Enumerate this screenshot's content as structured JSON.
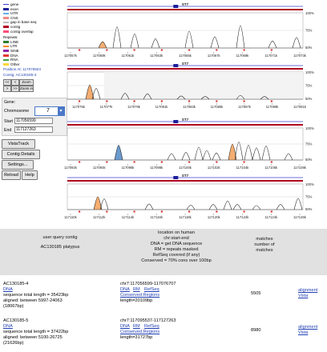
{
  "legend": {
    "features": [
      {
        "label": "gene",
        "color": "#3b3bd6"
      },
      {
        "label": "exon",
        "color": "#1f1f9a"
      },
      {
        "label": "UTR",
        "color": "#66b2e8"
      },
      {
        "label": "CNS",
        "color": "#ef8a86"
      },
      {
        "label": "gap in base seq",
        "color": "#bdbdbd"
      },
      {
        "label": "contig",
        "color": "#b00020"
      },
      {
        "label": "contig overlap",
        "color": "#ff4d7a"
      }
    ],
    "repeats_title": "Repeats:",
    "repeats": [
      {
        "label": "LINE",
        "color": "#2e7d32"
      },
      {
        "label": "LTR",
        "color": "#fb8c00"
      },
      {
        "label": "SINE",
        "color": "#8e24aa"
      },
      {
        "label": "DNA",
        "color": "#e53935"
      },
      {
        "label": "RNA",
        "color": "#43a047"
      },
      {
        "label": "Other",
        "color": "#fdd835"
      }
    ],
    "position_text": "Position At: 117075923",
    "contig_text": "Contig: AC130185-4"
  },
  "nav": {
    "buttons": [
      "<<",
      "<",
      "Zoom out",
      ">",
      ">>",
      "Zoom in"
    ]
  },
  "form": {
    "gene_label": "Gene:",
    "chromosome_label": "Chromosome",
    "chromosome_value": "7",
    "start_label": "Start",
    "start_value": "117056599",
    "end_label": "End",
    "end_value": "117127263"
  },
  "buttons": {
    "vistatrack": "VistaTrack",
    "contig_details": "Contig Details",
    "settings": "Settings...",
    "reload": "Reload",
    "help": "Help"
  },
  "panels": {
    "gene_label": "ST7",
    "pct_high": "100%",
    "pct_mid": "75%",
    "pct_low": "50%",
    "axis_rows": [
      [
        "117057k",
        "117059k",
        "117061k",
        "117063k",
        "117065k",
        "117067k",
        "117069k",
        "117071k",
        "117073k"
      ],
      [
        "117075k",
        "117077k",
        "117079k",
        "117081k",
        "117083k",
        "117085k",
        "117087k",
        "117089k",
        "117091k"
      ],
      [
        "117092k",
        "117094k",
        "117096k",
        "117098k",
        "117100k",
        "117102k",
        "117104k",
        "117106k",
        "117108k"
      ],
      [
        "117110k",
        "117112k",
        "117114k",
        "117116k",
        "117118k",
        "117120k",
        "117122k",
        "117124k",
        "117126k"
      ]
    ]
  },
  "table": {
    "col1_header": "user query contig",
    "col1_value": "AC130185 platypus",
    "col2_header_lines": [
      "location on human",
      "chr:start-end",
      "DNA = get DNA sequence",
      "RM = repeats masked",
      "RefSeq covered (if any)",
      "Conserved = 70% cons over 100bp"
    ],
    "col3_header_lines": [
      "matches",
      "number of",
      "matches"
    ],
    "rows": [
      {
        "contig": "AC130185-4",
        "dna": "DNA",
        "seq_length": "sequence total length = 35423bp",
        "aligned": "aligned: between 5997-24063",
        "aligned_len": "(18067bp)",
        "location": "chr7:117056599-117076707",
        "links": [
          "DNA",
          "RM",
          "RefSeq"
        ],
        "conserved": "Conserved Regions",
        "length": "length=20109bp",
        "matches": "5505",
        "alignment": "alignment",
        "vista": "Vista"
      },
      {
        "contig": "AC130185-5",
        "dna": "DNA",
        "seq_length": "sequence total length = 37422bp",
        "aligned": "aligned: between 5100-26725",
        "aligned_len": "(21626bp)",
        "location": "chr7:117095537-117127263",
        "links": [
          "DNA",
          "RM",
          "RefSeq"
        ],
        "conserved": "Conserved Regions",
        "length": "length=31727bp",
        "matches": "8980",
        "alignment": "alignment",
        "vista": "Vista"
      }
    ]
  }
}
